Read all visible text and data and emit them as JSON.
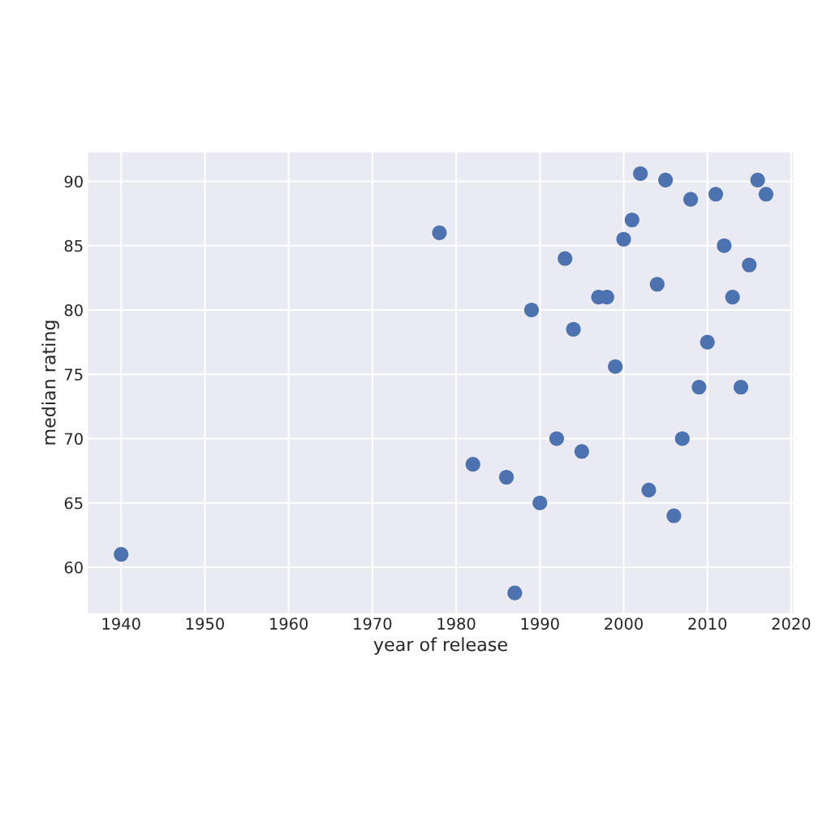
{
  "chart_data": {
    "type": "scatter",
    "xlabel": "year of release",
    "ylabel": "median rating",
    "x": [
      1940,
      1978,
      1982,
      1986,
      1987,
      1989,
      1990,
      1992,
      1993,
      1994,
      1995,
      1997,
      1998,
      1999,
      2000,
      2001,
      2002,
      2003,
      2004,
      2005,
      2006,
      2007,
      2008,
      2009,
      2010,
      2011,
      2012,
      2013,
      2014,
      2015,
      2016,
      2017
    ],
    "series": [
      {
        "color": "#4c72b0",
        "values": [
          61,
          86,
          68,
          67,
          58,
          80,
          65,
          70,
          84,
          78.5,
          69,
          81,
          81,
          75.6,
          85.5,
          87,
          90.6,
          66,
          82,
          90.1,
          64,
          70,
          88.6,
          74,
          77.5,
          89,
          85,
          81,
          74,
          83.5,
          90.1,
          89
        ]
      }
    ],
    "xlim": [
      1936,
      2020.3
    ],
    "ylim": [
      56.4,
      92.3
    ],
    "xticks": [
      1940,
      1950,
      1960,
      1970,
      1980,
      1990,
      2000,
      2010,
      2020
    ],
    "yticks": [
      60,
      65,
      70,
      75,
      80,
      85,
      90
    ],
    "grid": true,
    "marker": "circle"
  }
}
